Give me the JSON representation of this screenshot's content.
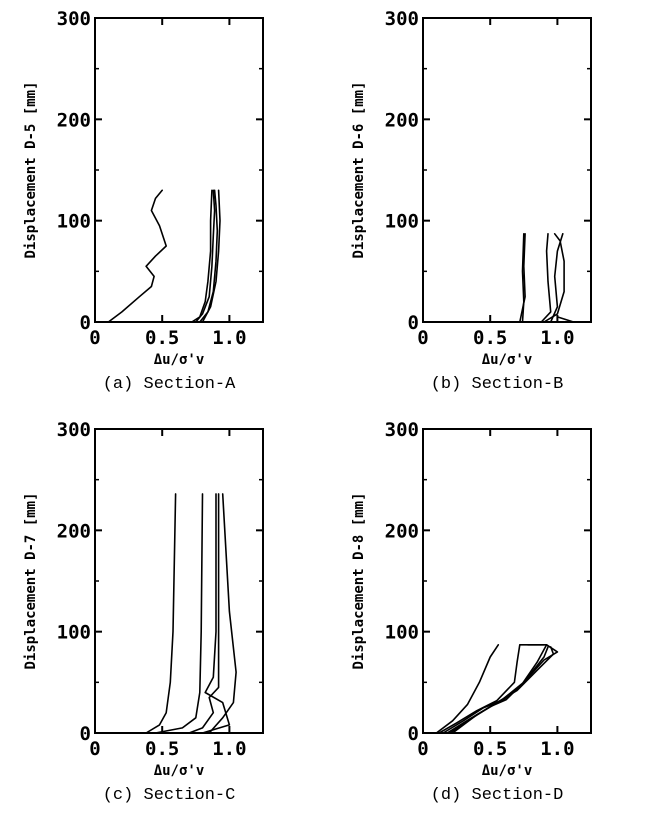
{
  "chart_data": [
    {
      "type": "line",
      "caption": "(a) Section-A",
      "ylabel": "Displacement D-5 [mm]",
      "xlabel": "Δu/σ'v",
      "xlim": [
        0,
        1.25
      ],
      "ylim": [
        0,
        300
      ],
      "xticks": [
        {
          "value": 0,
          "label": "0"
        },
        {
          "value": 0.5,
          "label": "0.5"
        },
        {
          "value": 1.0,
          "label": "1.0"
        }
      ],
      "yticks": [
        {
          "value": 0,
          "label": "0"
        },
        {
          "value": 100,
          "label": "100"
        },
        {
          "value": 200,
          "label": "200"
        },
        {
          "value": 300,
          "label": "300"
        }
      ],
      "series": [
        {
          "points": [
            [
              0.1,
              0
            ],
            [
              0.2,
              10
            ],
            [
              0.33,
              25
            ],
            [
              0.42,
              35
            ],
            [
              0.44,
              45
            ],
            [
              0.38,
              55
            ],
            [
              0.45,
              65
            ],
            [
              0.53,
              75
            ],
            [
              0.48,
              95
            ],
            [
              0.42,
              110
            ],
            [
              0.45,
              122
            ],
            [
              0.5,
              130
            ]
          ]
        },
        {
          "points": [
            [
              0.72,
              0
            ],
            [
              0.78,
              5
            ],
            [
              0.82,
              20
            ],
            [
              0.84,
              40
            ],
            [
              0.86,
              70
            ],
            [
              0.86,
              100
            ],
            [
              0.87,
              130
            ]
          ]
        },
        {
          "points": [
            [
              0.75,
              0
            ],
            [
              0.8,
              8
            ],
            [
              0.85,
              25
            ],
            [
              0.87,
              55
            ],
            [
              0.88,
              85
            ],
            [
              0.89,
              110
            ],
            [
              0.88,
              130
            ]
          ]
        },
        {
          "points": [
            [
              0.78,
              0
            ],
            [
              0.84,
              10
            ],
            [
              0.88,
              30
            ],
            [
              0.9,
              60
            ],
            [
              0.91,
              90
            ],
            [
              0.9,
              115
            ],
            [
              0.89,
              130
            ]
          ]
        },
        {
          "points": [
            [
              0.8,
              0
            ],
            [
              0.86,
              15
            ],
            [
              0.9,
              40
            ],
            [
              0.92,
              70
            ],
            [
              0.93,
              100
            ],
            [
              0.92,
              130
            ]
          ]
        }
      ]
    },
    {
      "type": "line",
      "caption": "(b) Section-B",
      "ylabel": "Displacement D-6 [mm]",
      "xlabel": "Δu/σ'v",
      "xlim": [
        0,
        1.25
      ],
      "ylim": [
        0,
        300
      ],
      "xticks": [
        {
          "value": 0,
          "label": "0"
        },
        {
          "value": 0.5,
          "label": "0.5"
        },
        {
          "value": 1.0,
          "label": "1.0"
        }
      ],
      "yticks": [
        {
          "value": 0,
          "label": "0"
        },
        {
          "value": 100,
          "label": "100"
        },
        {
          "value": 200,
          "label": "200"
        },
        {
          "value": 300,
          "label": "300"
        }
      ],
      "series": [
        {
          "points": [
            [
              0.0,
              0
            ],
            [
              0.74,
              0
            ],
            [
              0.75,
              20
            ],
            [
              0.74,
              50
            ],
            [
              0.75,
              87
            ]
          ]
        },
        {
          "points": [
            [
              0.72,
              0
            ],
            [
              0.76,
              25
            ],
            [
              0.75,
              55
            ],
            [
              0.76,
              87
            ]
          ]
        },
        {
          "points": [
            [
              0.88,
              0
            ],
            [
              0.95,
              10
            ],
            [
              0.93,
              40
            ],
            [
              0.92,
              70
            ],
            [
              0.93,
              87
            ]
          ]
        },
        {
          "points": [
            [
              0.9,
              0
            ],
            [
              1.0,
              8
            ],
            [
              1.05,
              30
            ],
            [
              1.05,
              60
            ],
            [
              1.02,
              80
            ],
            [
              0.98,
              87
            ]
          ]
        },
        {
          "points": [
            [
              0.95,
              0
            ],
            [
              1.0,
              15
            ],
            [
              0.98,
              45
            ],
            [
              1.0,
              70
            ],
            [
              1.04,
              87
            ]
          ]
        },
        {
          "points": [
            [
              0.9,
              0
            ],
            [
              1.0,
              0
            ],
            [
              1.12,
              0
            ],
            [
              1.0,
              5
            ]
          ]
        }
      ]
    },
    {
      "type": "line",
      "caption": "(c) Section-C",
      "ylabel": "Displacement D-7 [mm]",
      "xlabel": "Δu/σ'v",
      "xlim": [
        0,
        1.25
      ],
      "ylim": [
        0,
        300
      ],
      "xticks": [
        {
          "value": 0,
          "label": "0"
        },
        {
          "value": 0.5,
          "label": "0.5"
        },
        {
          "value": 1.0,
          "label": "1.0"
        }
      ],
      "yticks": [
        {
          "value": 0,
          "label": "0"
        },
        {
          "value": 100,
          "label": "100"
        },
        {
          "value": 200,
          "label": "200"
        },
        {
          "value": 300,
          "label": "300"
        }
      ],
      "series": [
        {
          "points": [
            [
              0.0,
              0
            ],
            [
              0.38,
              0
            ],
            [
              0.48,
              8
            ],
            [
              0.53,
              20
            ],
            [
              0.56,
              50
            ],
            [
              0.58,
              100
            ],
            [
              0.6,
              236
            ]
          ]
        },
        {
          "points": [
            [
              0.45,
              0
            ],
            [
              0.65,
              5
            ],
            [
              0.75,
              15
            ],
            [
              0.78,
              40
            ],
            [
              0.79,
              100
            ],
            [
              0.8,
              236
            ]
          ]
        },
        {
          "points": [
            [
              0.7,
              0
            ],
            [
              0.8,
              5
            ],
            [
              0.88,
              20
            ],
            [
              0.85,
              35
            ],
            [
              0.92,
              45
            ],
            [
              0.92,
              100
            ],
            [
              0.92,
              236
            ]
          ]
        },
        {
          "points": [
            [
              0.8,
              0
            ],
            [
              1.0,
              8
            ],
            [
              0.95,
              30
            ],
            [
              0.82,
              40
            ],
            [
              0.88,
              55
            ],
            [
              0.9,
              100
            ],
            [
              0.9,
              236
            ]
          ]
        },
        {
          "points": [
            [
              0.85,
              0
            ],
            [
              0.95,
              15
            ],
            [
              1.03,
              30
            ],
            [
              1.05,
              60
            ],
            [
              1.0,
              120
            ],
            [
              0.95,
              236
            ]
          ]
        }
      ]
    },
    {
      "type": "line",
      "caption": "(d) Section-D",
      "ylabel": "Displacement D-8 [mm]",
      "xlabel": "Δu/σ'v",
      "xlim": [
        0,
        1.25
      ],
      "ylim": [
        0,
        300
      ],
      "xticks": [
        {
          "value": 0,
          "label": "0"
        },
        {
          "value": 0.5,
          "label": "0.5"
        },
        {
          "value": 1.0,
          "label": "1.0"
        }
      ],
      "yticks": [
        {
          "value": 0,
          "label": "0"
        },
        {
          "value": 100,
          "label": "100"
        },
        {
          "value": 200,
          "label": "200"
        },
        {
          "value": 300,
          "label": "300"
        }
      ],
      "series": [
        {
          "points": [
            [
              0.1,
              0
            ],
            [
              0.22,
              12
            ],
            [
              0.33,
              28
            ],
            [
              0.42,
              50
            ],
            [
              0.5,
              75
            ],
            [
              0.56,
              87
            ]
          ]
        },
        {
          "points": [
            [
              0.12,
              0
            ],
            [
              0.25,
              10
            ],
            [
              0.4,
              22
            ],
            [
              0.55,
              32
            ],
            [
              0.68,
              50
            ],
            [
              0.7,
              70
            ],
            [
              0.72,
              87
            ],
            [
              0.9,
              87
            ]
          ]
        },
        {
          "points": [
            [
              0.15,
              0
            ],
            [
              0.3,
              12
            ],
            [
              0.45,
              25
            ],
            [
              0.6,
              33
            ],
            [
              0.72,
              45
            ],
            [
              0.85,
              70
            ],
            [
              0.92,
              87
            ]
          ]
        },
        {
          "points": [
            [
              0.18,
              0
            ],
            [
              0.35,
              14
            ],
            [
              0.5,
              26
            ],
            [
              0.62,
              33
            ],
            [
              0.75,
              50
            ],
            [
              0.9,
              75
            ],
            [
              0.93,
              85
            ]
          ]
        },
        {
          "points": [
            [
              0.2,
              0
            ],
            [
              0.38,
              16
            ],
            [
              0.55,
              30
            ],
            [
              0.7,
              42
            ],
            [
              0.85,
              62
            ],
            [
              0.97,
              78
            ],
            [
              0.95,
              85
            ]
          ]
        },
        {
          "points": [
            [
              0.22,
              0
            ],
            [
              0.4,
              18
            ],
            [
              0.58,
              32
            ],
            [
              0.75,
              50
            ],
            [
              0.9,
              72
            ],
            [
              1.0,
              80
            ],
            [
              0.92,
              87
            ],
            [
              0.78,
              87
            ]
          ]
        }
      ]
    }
  ]
}
